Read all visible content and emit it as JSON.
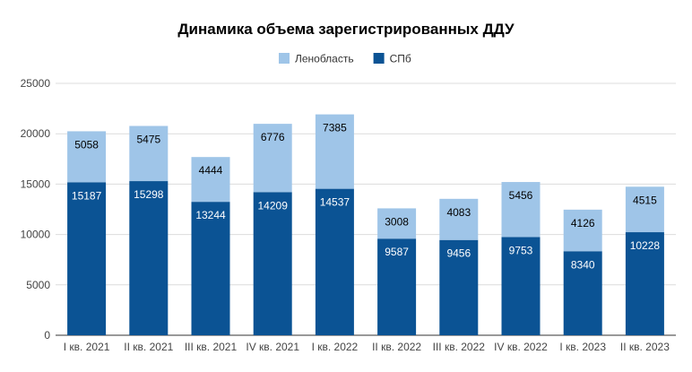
{
  "chart_data": {
    "type": "bar",
    "stacked": true,
    "title": "Динамика объема зарегистрированных ДДУ",
    "xlabel": "",
    "ylabel": "",
    "categories": [
      "I кв. 2021",
      "II кв. 2021",
      "III кв. 2021",
      "IV кв. 2021",
      "I кв. 2022",
      "II кв. 2022",
      "III кв. 2022",
      "IV кв. 2022",
      "I кв. 2023",
      "II кв. 2023"
    ],
    "series": [
      {
        "name": "СПб",
        "color": "#0b5394",
        "label_color": "#ffffff",
        "values": [
          15187,
          15298,
          13244,
          14209,
          14537,
          9587,
          9456,
          9753,
          8340,
          10228
        ]
      },
      {
        "name": "Ленобласть",
        "color": "#9fc5e8",
        "label_color": "#000000",
        "values": [
          5058,
          5475,
          4444,
          6776,
          7385,
          3008,
          4083,
          5456,
          4126,
          4515
        ]
      }
    ],
    "legend_order": [
      "Ленобласть",
      "СПб"
    ],
    "legend_position": "top",
    "ylim": [
      0,
      25000
    ],
    "yticks": [
      "0",
      "5000",
      "10000",
      "15000",
      "20000",
      "25000"
    ],
    "grid": true
  }
}
